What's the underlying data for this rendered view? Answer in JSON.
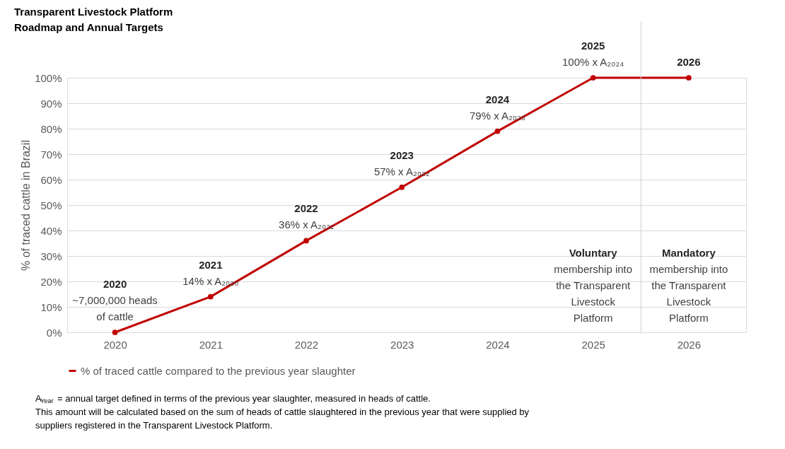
{
  "chart_data": {
    "type": "line",
    "title": "Transparent Livestock Platform\nRoadmap and Annual Targets",
    "ylabel": "% of traced cattle in Brazil",
    "x": [
      2020,
      2021,
      2022,
      2023,
      2024,
      2025,
      2026
    ],
    "series": [
      {
        "name": "% of traced cattle compared to the previous year slaughter",
        "color": "#c00000",
        "values": [
          0,
          14,
          36,
          57,
          79,
          100,
          100
        ]
      }
    ],
    "xlim": [
      2019.5,
      2026.6
    ],
    "xticks": [
      2020,
      2021,
      2022,
      2023,
      2024,
      2025,
      2026
    ],
    "ylim": [
      0,
      100
    ],
    "yticks": [
      {
        "value": 0,
        "label": "0%"
      },
      {
        "value": 10,
        "label": "10%"
      },
      {
        "value": 20,
        "label": "20%"
      },
      {
        "value": 30,
        "label": "30%"
      },
      {
        "value": 40,
        "label": "40%"
      },
      {
        "value": 50,
        "label": "50%"
      },
      {
        "value": 60,
        "label": "60%"
      },
      {
        "value": 70,
        "label": "70%"
      },
      {
        "value": 80,
        "label": "80%"
      },
      {
        "value": 90,
        "label": "90%"
      },
      {
        "value": 100,
        "label": "100%"
      }
    ],
    "grid": "y",
    "legend": "bottom",
    "marker": "circle",
    "line_style": "solid",
    "ref_lines": [
      {
        "axis": "x",
        "value": 2025.5,
        "color": "#d0d0d0"
      }
    ],
    "annotations": [
      {
        "text": "2020\n~7,000,000 heads\nof cattle",
        "x": 2020,
        "y": 0
      },
      {
        "text": "2021\n14% x A₂₀₂₀",
        "x": 2021,
        "y": 14
      },
      {
        "text": "2022\n36% x A₂₀₂₁",
        "x": 2022,
        "y": 36
      },
      {
        "text": "2023\n57% x A₂₀₂₂",
        "x": 2023,
        "y": 57
      },
      {
        "text": "2024\n79% x A₂₀₂₃",
        "x": 2024,
        "y": 79
      },
      {
        "text": "2025\n100% x A₂₀₂₄",
        "x": 2025,
        "y": 100
      },
      {
        "text": "2026",
        "x": 2026,
        "y": 100
      },
      "Voluntary\nmembership into\nthe Transparent\nLivestock\nPlatform",
      "Mandatory\nmembership into\nthe Transparent\nLivestock\nPlatform",
      "A$_{Year}$ = annual target defined in terms of the previous year slaughter, measured in heads of cattle.",
      "This amount will be calculated based on the sum of heads of cattle slaughtered in the previous year that were supplied by",
      "suppliers registered in the Transparent Livestock Platform."
    ]
  }
}
